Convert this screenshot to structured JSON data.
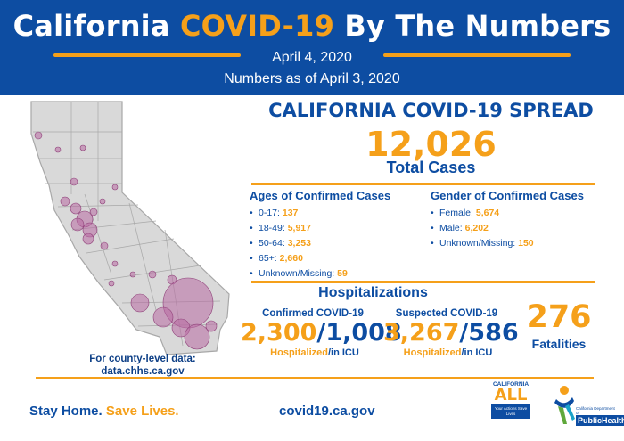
{
  "header": {
    "title_part1": "California",
    "title_highlight": "COVID-19",
    "title_part2": "By The Numbers",
    "date": "April 4, 2020",
    "as_of": "Numbers as of April 3, 2020"
  },
  "spread": {
    "title": "CALIFORNIA COVID-19 SPREAD",
    "total_cases": "12,026",
    "total_label": "Total Cases"
  },
  "ages": {
    "title": "Ages of Confirmed Cases",
    "items": [
      {
        "label": "0-17:",
        "value": "137"
      },
      {
        "label": "18-49:",
        "value": "5,917"
      },
      {
        "label": "50-64:",
        "value": "3,253"
      },
      {
        "label": "65+:",
        "value": "2,660"
      },
      {
        "label": "Unknown/Missing:",
        "value": "59"
      }
    ]
  },
  "gender": {
    "title": "Gender of Confirmed Cases",
    "items": [
      {
        "label": "Female:",
        "value": "5,674"
      },
      {
        "label": "Male:",
        "value": "6,202"
      },
      {
        "label": "Unknown/Missing:",
        "value": "150"
      }
    ]
  },
  "hospitalizations": {
    "title": "Hospitalizations",
    "confirmed": {
      "label": "Confirmed COVID-19",
      "hospitalized": "2,300",
      "icu": "1,008",
      "sub_hospitalized": "Hospitalized",
      "sub_icu": "/in ICU"
    },
    "suspected": {
      "label": "Suspected COVID-19",
      "hospitalized": "3,267",
      "icu": "586",
      "sub_hospitalized": "Hospitalized",
      "sub_icu": "/in ICU"
    }
  },
  "fatalities": {
    "value": "276",
    "label": "Fatalities"
  },
  "county_note": {
    "line1": "For county-level data:",
    "line2": "data.chhs.ca.gov"
  },
  "footer": {
    "stay_home": "Stay Home.",
    "save_lives": "Save Lives.",
    "url": "covid19.ca.gov",
    "ca_all_top": "CALIFORNIA",
    "ca_all_big": "ALL",
    "ca_all_box": "Your Actions Save Lives",
    "cdph_text1": "California Department of",
    "cdph_text2": "PublicHealth"
  },
  "colors": {
    "brand_blue": "#0d4da2",
    "accent_orange": "#f5a01a",
    "bubble": "#b86aa2"
  },
  "icons": [
    "california-map-icon",
    "ca-all-logo",
    "cdph-logo"
  ]
}
